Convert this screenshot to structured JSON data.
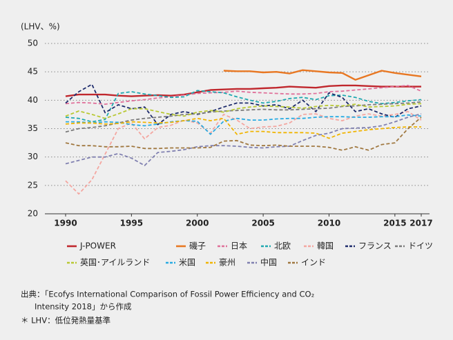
{
  "chart_data": {
    "type": "line",
    "y_label": "(LHV、%)",
    "x": [
      1990,
      1991,
      1992,
      1993,
      1994,
      1995,
      1996,
      1997,
      1998,
      1999,
      2000,
      2001,
      2002,
      2003,
      2004,
      2005,
      2006,
      2007,
      2008,
      2009,
      2010,
      2011,
      2012,
      2013,
      2014,
      2015,
      2016,
      2017
    ],
    "xlim": [
      1990,
      2017
    ],
    "xticks": [
      1990,
      1995,
      2000,
      2005,
      2010,
      2015,
      2017
    ],
    "ylim": [
      20,
      50
    ],
    "yticks": [
      20,
      25,
      30,
      35,
      40,
      45,
      50
    ],
    "grid": true,
    "series": [
      {
        "name": "J-POWER",
        "color": "#c0272d",
        "style": "solid",
        "values": [
          40.7,
          41,
          41,
          41,
          40.8,
          40.7,
          40.8,
          40.9,
          40.8,
          41,
          41.4,
          41.8,
          41.9,
          42,
          42,
          42.1,
          42.2,
          42.4,
          42.3,
          42.2,
          42.5,
          42.6,
          42.6,
          42.5,
          42.4,
          42.4,
          42.4,
          42.4
        ]
      },
      {
        "name": "磯子",
        "color": "#e87722",
        "style": "solid",
        "values": [
          null,
          null,
          null,
          null,
          null,
          null,
          null,
          null,
          null,
          null,
          null,
          null,
          45.2,
          45.1,
          45.1,
          44.9,
          45.0,
          44.7,
          45.3,
          45.1,
          44.9,
          44.8,
          43.6,
          44.4,
          45.2,
          44.8,
          44.5,
          44.2
        ]
      },
      {
        "name": "日本",
        "color": "#e0709a",
        "style": "dashed",
        "values": [
          39.4,
          39.6,
          39.5,
          39.3,
          39.6,
          39.9,
          40.1,
          40.4,
          40.6,
          40.9,
          41.2,
          41.3,
          41.4,
          41.6,
          41.4,
          41.3,
          41.2,
          41.1,
          41.1,
          41.2,
          41.5,
          41.6,
          41.8,
          42.0,
          42.2,
          42.4,
          42.6,
          41.6
        ]
      },
      {
        "name": "北欧",
        "color": "#1fa8b0",
        "style": "dashed",
        "values": [
          37.0,
          36.8,
          36.2,
          36.6,
          41.2,
          41.5,
          41.1,
          40.8,
          40.5,
          40.6,
          41.7,
          41.5,
          41.3,
          40.6,
          40.0,
          39.5,
          39.8,
          40.3,
          40.5,
          40.1,
          40.8,
          40.9,
          40.5,
          39.8,
          39.4,
          39.6,
          39.9,
          40.1
        ]
      },
      {
        "name": "韓国",
        "color": "#f4a6a0",
        "style": "dashed",
        "values": [
          25.8,
          23.5,
          26.0,
          30.5,
          35.0,
          36.0,
          33.2,
          35.2,
          35.6,
          36.5,
          36.0,
          34.2,
          37.5,
          36.5,
          35.0,
          35.3,
          35.4,
          36.0,
          37.5,
          37.6,
          36.8,
          36.4,
          37.2,
          37.6,
          37.2,
          37.5,
          38.0,
          36.5
        ]
      },
      {
        "name": "フランス",
        "color": "#1c2a6b",
        "style": "dashed",
        "values": [
          39.5,
          41.5,
          42.8,
          37.8,
          39.2,
          38.5,
          38.8,
          35.7,
          37.5,
          38.0,
          37.5,
          38.0,
          38.8,
          39.5,
          39.5,
          39.0,
          39.2,
          38.5,
          40.0,
          38.0,
          41.3,
          40.5,
          38.0,
          38.5,
          37.6,
          37.0,
          38.5,
          39.0
        ]
      },
      {
        "name": "ドイツ",
        "color": "#7a7a7a",
        "style": "dashed",
        "values": [
          34.4,
          35.0,
          35.2,
          35.5,
          36.0,
          36.5,
          36.8,
          37.0,
          37.2,
          37.5,
          37.6,
          37.9,
          38.1,
          38.2,
          38.3,
          38.4,
          38.3,
          38.3,
          38.4,
          38.5,
          38.6,
          38.9,
          39.0,
          39.2,
          39.3,
          39.4,
          39.5,
          39.7
        ]
      },
      {
        "name": "英国･アイルランド",
        "color": "#b8c832",
        "style": "dashed",
        "values": [
          37.2,
          38.1,
          37.5,
          36.8,
          37.6,
          38.5,
          38.5,
          38.0,
          37.5,
          37.2,
          37.9,
          38.2,
          37.9,
          38.5,
          38.8,
          39.0,
          38.9,
          38.8,
          38.6,
          38.9,
          39.1,
          39.0,
          39.3,
          38.8,
          38.9,
          39.0,
          39.3,
          39.4
        ]
      },
      {
        "name": "米国",
        "color": "#29abe2",
        "style": "dashed",
        "values": [
          36.2,
          36.2,
          36.0,
          36.2,
          36.1,
          35.7,
          35.5,
          35.8,
          36.2,
          36.4,
          36.3,
          34.0,
          36.3,
          36.8,
          36.5,
          36.5,
          36.7,
          36.8,
          36.8,
          37.0,
          37.1,
          37.1,
          37.0,
          37.0,
          37.1,
          37.1,
          37.4,
          37.2
        ]
      },
      {
        "name": "豪州",
        "color": "#f0b400",
        "style": "dashed",
        "values": [
          35.8,
          36.0,
          36.0,
          35.8,
          35.9,
          36.2,
          36.1,
          36.0,
          36.1,
          36.4,
          36.8,
          36.4,
          36.8,
          34.0,
          34.5,
          34.5,
          34.3,
          34.3,
          34.3,
          34.2,
          33.3,
          34.2,
          34.5,
          34.8,
          35.0,
          35.2,
          35.3,
          35.3
        ]
      },
      {
        "name": "中国",
        "color": "#8080b0",
        "style": "dashed",
        "values": [
          28.8,
          29.4,
          30.0,
          30.0,
          30.6,
          29.8,
          28.5,
          30.8,
          31.0,
          31.3,
          31.8,
          32.0,
          32.0,
          31.9,
          31.7,
          31.6,
          31.8,
          31.9,
          32.9,
          33.8,
          34.2,
          35.0,
          35.1,
          35.2,
          35.5,
          36.2,
          37.0,
          37.6
        ]
      },
      {
        "name": "インド",
        "color": "#a07840",
        "style": "dashed",
        "values": [
          32.5,
          32.0,
          32.0,
          31.8,
          31.8,
          31.9,
          31.5,
          31.5,
          31.6,
          31.6,
          31.6,
          31.7,
          32.8,
          32.9,
          32.1,
          32.0,
          32.1,
          31.9,
          31.9,
          31.9,
          31.7,
          31.2,
          31.8,
          31.2,
          32.2,
          32.5,
          35.0,
          37.0
        ]
      }
    ],
    "notes": [
      "出典：「Ecofys International Comparison of Fossil Power Efficiency and CO₂",
      "Intensity 2018」から作成",
      "＊ LHV：低位発熱量基準"
    ]
  }
}
